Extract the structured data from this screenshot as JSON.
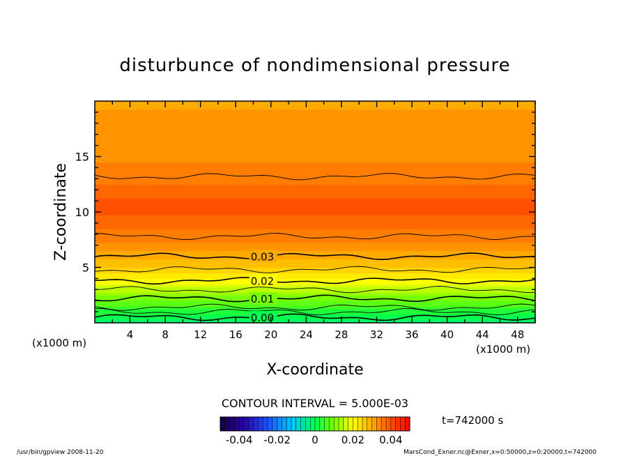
{
  "chart_data": {
    "type": "contour",
    "title": "disturbunce of nondimensional pressure",
    "xlabel": "X-coordinate",
    "ylabel": "Z-coordinate",
    "x_unit_left": "(x1000 m)",
    "x_unit_right": "(x1000 m)",
    "xlim": [
      0,
      50
    ],
    "ylim": [
      0,
      20
    ],
    "xticks": [
      "4",
      "8",
      "12",
      "16",
      "20",
      "24",
      "28",
      "32",
      "36",
      "40",
      "44",
      "48"
    ],
    "xtick_values": [
      4,
      8,
      12,
      16,
      20,
      24,
      28,
      32,
      36,
      40,
      44,
      48
    ],
    "yticks": [
      "5",
      "10",
      "15"
    ],
    "ytick_values": [
      5,
      10,
      15
    ],
    "contour_interval_text": "CONTOUR INTERVAL = 5.000E-03",
    "contour_labels": [
      {
        "text": "0.00",
        "z": 0.5
      },
      {
        "text": "0.01",
        "z": 2.2
      },
      {
        "text": "0.02",
        "z": 3.8
      },
      {
        "text": "0.03",
        "z": 6.0
      }
    ],
    "field_profile": [
      {
        "z": 0.0,
        "value": -0.002
      },
      {
        "z": 0.5,
        "value": 0.0
      },
      {
        "z": 1.4,
        "value": 0.005
      },
      {
        "z": 2.2,
        "value": 0.01
      },
      {
        "z": 3.0,
        "value": 0.015
      },
      {
        "z": 3.8,
        "value": 0.02
      },
      {
        "z": 4.8,
        "value": 0.025
      },
      {
        "z": 6.0,
        "value": 0.03
      },
      {
        "z": 7.8,
        "value": 0.035
      },
      {
        "z": 10.5,
        "value": 0.04
      },
      {
        "z": 13.2,
        "value": 0.035
      },
      {
        "z": 16.5,
        "value": 0.032
      },
      {
        "z": 20.0,
        "value": 0.031
      }
    ],
    "contour_levels": [
      {
        "z": 0.5,
        "value": 0.0,
        "bold": true
      },
      {
        "z": 1.0,
        "value": 0.0025,
        "bold": false
      },
      {
        "z": 1.4,
        "value": 0.005,
        "bold": false
      },
      {
        "z": 2.2,
        "value": 0.01,
        "bold": true
      },
      {
        "z": 3.0,
        "value": 0.015,
        "bold": false
      },
      {
        "z": 3.8,
        "value": 0.02,
        "bold": true
      },
      {
        "z": 4.8,
        "value": 0.025,
        "bold": false
      },
      {
        "z": 6.0,
        "value": 0.03,
        "bold": true
      },
      {
        "z": 7.8,
        "value": 0.035,
        "bold": false
      },
      {
        "z": 13.2,
        "value": 0.035,
        "bold": false
      }
    ],
    "colorbar": {
      "ticks": [
        "-0.04",
        "-0.02",
        "0",
        "0.02",
        "0.04"
      ],
      "tick_values": [
        -0.04,
        -0.02,
        0,
        0.02,
        0.04
      ],
      "range": [
        -0.05,
        0.05
      ]
    },
    "time_label": "t=742000 s",
    "footer_left": "/usr/bin/gpview   2008-11-20",
    "footer_right": "MarsCond_Exner.nc@Exner,x=0:50000,z=0:20000,t=742000"
  }
}
